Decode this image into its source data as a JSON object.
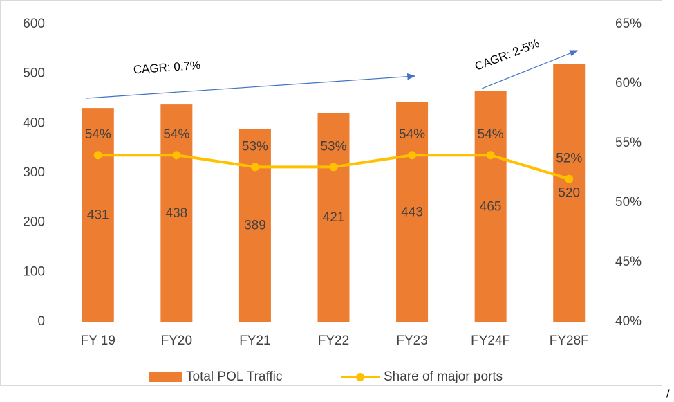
{
  "chart_data": {
    "type": "bar_line",
    "categories": [
      "FY 19",
      "FY20",
      "FY21",
      "FY22",
      "FY23",
      "FY24F",
      "FY28F"
    ],
    "series": [
      {
        "name": "Total POL Traffic",
        "color": "#ED7D31",
        "type": "bar",
        "values": [
          431,
          438,
          389,
          421,
          443,
          465,
          520
        ]
      },
      {
        "name": "Share of major ports",
        "color": "#FFC000",
        "type": "line",
        "axis": "y2",
        "values": [
          54,
          54,
          53,
          53,
          54,
          54,
          52
        ],
        "value_labels": [
          "54%",
          "54%",
          "53%",
          "53%",
          "54%",
          "54%",
          "52%"
        ]
      }
    ],
    "ylim": [
      0,
      600
    ],
    "yticks": [
      0,
      100,
      200,
      300,
      400,
      500,
      600
    ],
    "y2lim": [
      40,
      65
    ],
    "y2ticks": [
      {
        "value": 40,
        "label": "40%"
      },
      {
        "value": 45,
        "label": "45%"
      },
      {
        "value": 50,
        "label": "50%"
      },
      {
        "value": 55,
        "label": "55%"
      },
      {
        "value": 60,
        "label": "60%"
      },
      {
        "value": 65,
        "label": "65%"
      }
    ],
    "annotations": [
      "CAGR: 0.7%",
      "CAGR: 2-5%",
      "/"
    ],
    "legend": "bottom",
    "grid": false
  }
}
